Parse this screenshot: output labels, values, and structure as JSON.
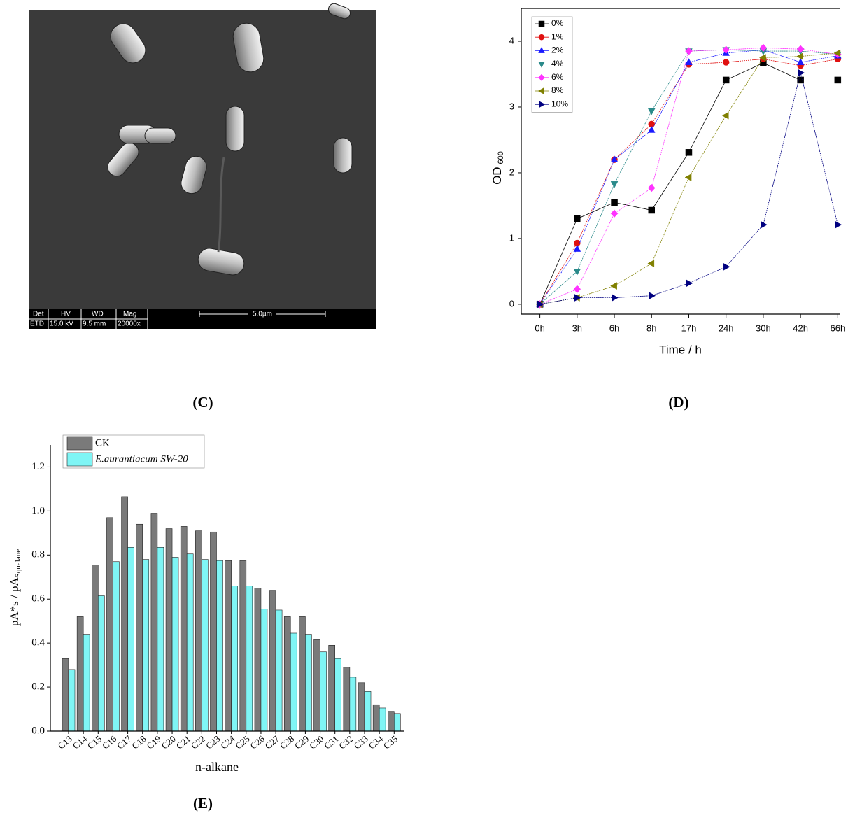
{
  "panels": [
    "(C)",
    "(D)",
    "(E)"
  ],
  "sem_image": {
    "headers": [
      "Det",
      "HV",
      "WD",
      "Mag"
    ],
    "values": [
      "ETD",
      "15.0 kV",
      "9.5 mm",
      "20000x"
    ],
    "scale_bar": "5.0µm"
  },
  "chart_data": [
    {
      "type": "line",
      "y_label": "OD",
      "y_label_sub": "600",
      "x_label": "Time / h",
      "categories": [
        "0h",
        "3h",
        "6h",
        "8h",
        "17h",
        "24h",
        "30h",
        "42h",
        "66h"
      ],
      "ylim": [
        -0.15,
        4.5
      ],
      "yticks": [
        0,
        1,
        2,
        3,
        4
      ],
      "legend": "top-left",
      "series": [
        {
          "name": "0%",
          "color": "#000000",
          "marker": "square",
          "values": [
            0,
            1.3,
            1.55,
            1.43,
            2.31,
            3.41,
            3.67,
            3.41,
            3.41
          ]
        },
        {
          "name": "1%",
          "color": "#e01010",
          "marker": "circle",
          "values": [
            0,
            0.93,
            2.2,
            2.74,
            3.65,
            3.68,
            3.73,
            3.63,
            3.73
          ]
        },
        {
          "name": "2%",
          "color": "#1a1aff",
          "marker": "triangle-up",
          "values": [
            0,
            0.84,
            2.2,
            2.65,
            3.68,
            3.82,
            3.87,
            3.68,
            3.78
          ]
        },
        {
          "name": "4%",
          "color": "#2a8a8a",
          "marker": "triangle-down",
          "values": [
            0,
            0.5,
            1.83,
            2.94,
            3.85,
            3.87,
            3.85,
            3.85,
            3.8
          ]
        },
        {
          "name": "6%",
          "color": "#ff33ff",
          "marker": "diamond",
          "values": [
            0,
            0.23,
            1.38,
            1.77,
            3.85,
            3.87,
            3.9,
            3.88,
            3.8
          ]
        },
        {
          "name": "8%",
          "color": "#808000",
          "marker": "triangle-left",
          "values": [
            0,
            0.1,
            0.28,
            0.62,
            1.93,
            2.87,
            3.75,
            3.77,
            3.82
          ]
        },
        {
          "name": "10%",
          "color": "#000080",
          "marker": "triangle-right",
          "values": [
            0,
            0.1,
            0.1,
            0.13,
            0.32,
            0.57,
            1.21,
            3.52,
            1.21
          ]
        }
      ]
    },
    {
      "type": "bar",
      "y_label": "pA*s / pA",
      "y_label_sub": "Squalane",
      "x_label": "n-alkane",
      "categories": [
        "C13",
        "C14",
        "C15",
        "C16",
        "C17",
        "C18",
        "C19",
        "C20",
        "C21",
        "C22",
        "C23",
        "C24",
        "C25",
        "C26",
        "C27",
        "C28",
        "C29",
        "C30",
        "C31",
        "C32",
        "C33",
        "C34",
        "C35"
      ],
      "ylim": [
        0,
        1.3
      ],
      "yticks": [
        {
          "value": 0,
          "label": "0.0"
        },
        0.2,
        0.4,
        0.6,
        0.8,
        {
          "value": 1,
          "label": "1.0"
        },
        1.2
      ],
      "legend": "top-left",
      "series": [
        {
          "name": "CK",
          "color": "#7a7a7a",
          "values": [
            0.33,
            0.52,
            0.755,
            0.97,
            1.065,
            0.94,
            0.99,
            0.92,
            0.93,
            0.91,
            0.905,
            0.775,
            0.775,
            0.65,
            0.64,
            0.52,
            0.52,
            0.415,
            0.39,
            0.29,
            0.22,
            0.12,
            0.09
          ]
        },
        {
          "name": "E.aurantiacum SW-20",
          "color": "#7ff5f5",
          "values": [
            0.28,
            0.44,
            0.615,
            0.77,
            0.835,
            0.78,
            0.835,
            0.79,
            0.805,
            0.78,
            0.775,
            0.66,
            0.66,
            0.555,
            0.55,
            0.445,
            0.44,
            0.36,
            0.33,
            0.245,
            0.18,
            0.105,
            0.08
          ]
        }
      ]
    }
  ]
}
